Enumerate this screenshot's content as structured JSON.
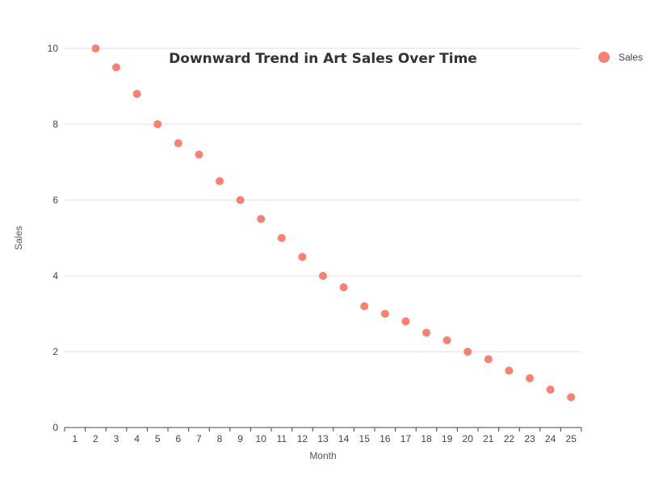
{
  "chart_data": {
    "type": "scatter",
    "title": "Downward Trend in Art Sales Over Time",
    "xlabel": "Month",
    "ylabel": "Sales",
    "x": [
      2,
      3,
      4,
      5,
      6,
      7,
      8,
      9,
      10,
      11,
      12,
      13,
      14,
      15,
      16,
      17,
      18,
      19,
      20,
      21,
      22,
      23,
      24,
      25
    ],
    "x_ticks": [
      1,
      2,
      3,
      4,
      5,
      6,
      7,
      8,
      9,
      10,
      11,
      12,
      13,
      14,
      15,
      16,
      17,
      18,
      19,
      20,
      21,
      22,
      23,
      24,
      25
    ],
    "y_ticks": [
      0,
      2,
      4,
      6,
      8,
      10
    ],
    "ylim": [
      0,
      10
    ],
    "series": [
      {
        "name": "Sales",
        "color": "#fa8072",
        "values": [
          10,
          9.5,
          8.8,
          8,
          7.5,
          7.2,
          6.5,
          6,
          5.5,
          5,
          4.5,
          4,
          3.7,
          3.2,
          3,
          2.8,
          2.5,
          2.3,
          2,
          1.8,
          1.5,
          1.3,
          1,
          0.8
        ]
      }
    ],
    "grid": "horizontal",
    "legend_position": "top-right"
  }
}
